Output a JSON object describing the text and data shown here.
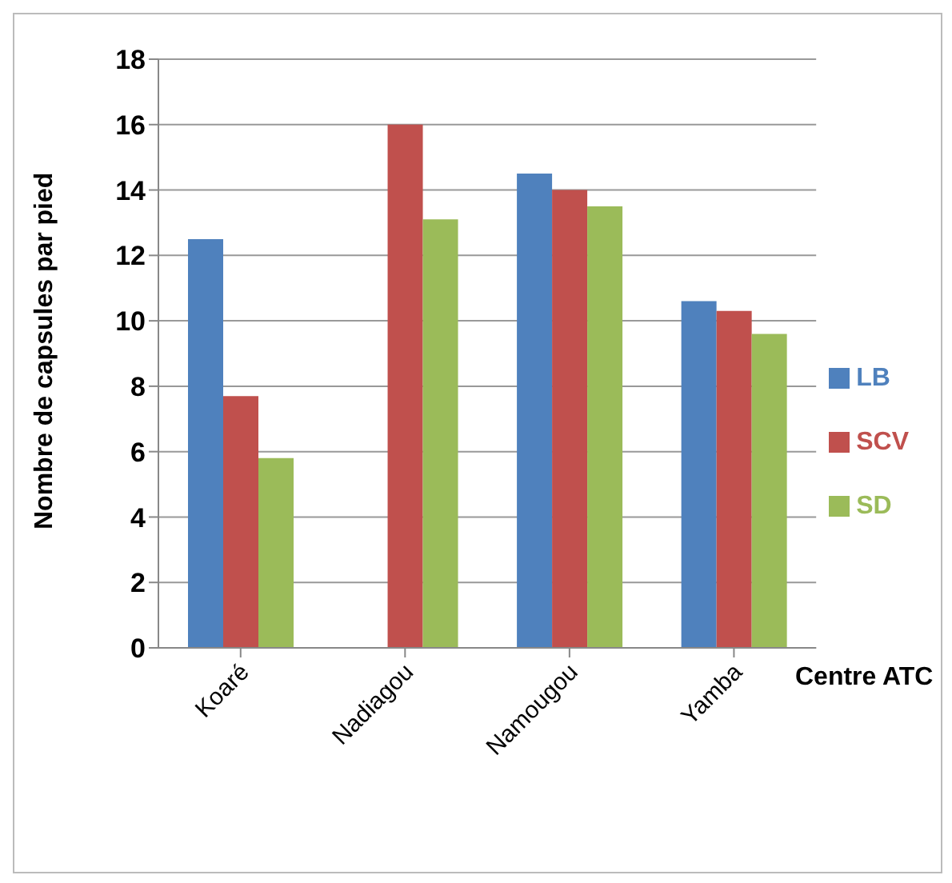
{
  "chart_data": {
    "type": "bar",
    "xlabel": "Centre ATC",
    "ylabel": "Nombre de capsules par pied",
    "categories": [
      "Koaré",
      "Nadiagou",
      "Namougou",
      "Yamba"
    ],
    "series": [
      {
        "name": "LB",
        "color": "#4f81bd",
        "values": [
          12.5,
          null,
          14.5,
          10.6
        ]
      },
      {
        "name": "SCV",
        "color": "#c0504d",
        "values": [
          7.7,
          16.0,
          14.0,
          10.3
        ]
      },
      {
        "name": "SD",
        "color": "#9bbb59",
        "values": [
          5.8,
          13.1,
          13.5,
          9.6
        ]
      }
    ],
    "ylim": [
      0,
      18
    ],
    "yticks": [
      0,
      2,
      4,
      6,
      8,
      10,
      12,
      14,
      16,
      18
    ],
    "grid": "y",
    "legend": "right"
  }
}
